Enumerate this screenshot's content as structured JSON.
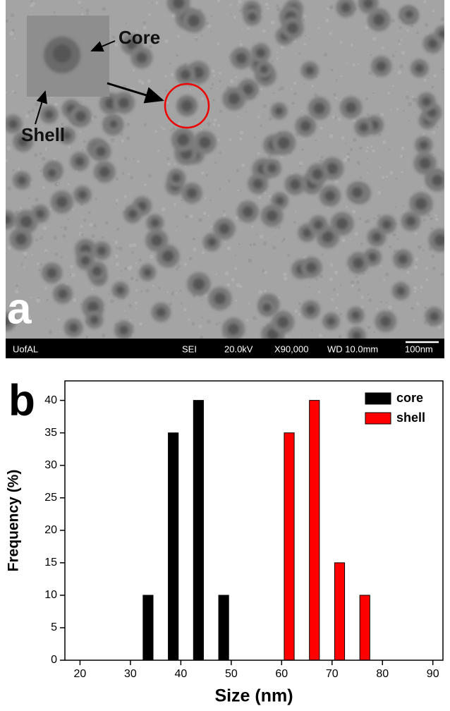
{
  "image_panel": {
    "label": "a",
    "annotations": [
      "Core",
      "Shell"
    ],
    "info_bar": [
      "UofAL",
      "SEI",
      "20.0kV",
      "X90,000",
      "WD 10.0mm",
      "100nm"
    ]
  },
  "chart_data": {
    "type": "bar",
    "panel_label": "b",
    "x_label": "Size (nm)",
    "y_label": "Frequency (%)",
    "series": [
      {
        "name": "core",
        "color": "#000000",
        "x": [
          33.5,
          38.5,
          43.5,
          48.5
        ],
        "values": [
          10,
          35,
          40,
          10
        ]
      },
      {
        "name": "shell",
        "color": "#ff0000",
        "x": [
          61.5,
          66.5,
          71.5,
          76.5
        ],
        "values": [
          35,
          40,
          15,
          10
        ]
      }
    ],
    "xlim": [
      17,
      92
    ],
    "xticks": [
      20,
      30,
      40,
      50,
      60,
      70,
      80,
      90
    ],
    "ylim": [
      0,
      43
    ],
    "yticks": [
      0,
      5,
      10,
      15,
      20,
      25,
      30,
      35,
      40
    ],
    "legend": "top-right",
    "grid": false
  }
}
